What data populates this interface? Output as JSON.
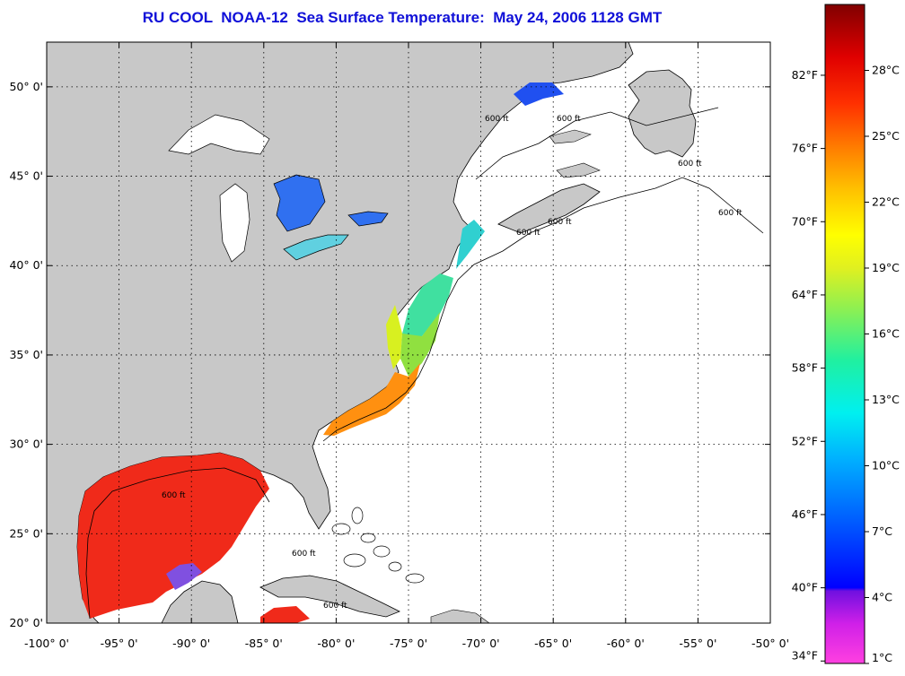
{
  "title": "RU COOL  NOAA-12  Sea Surface Temperature:  May 24, 2006 1128 GMT",
  "map": {
    "lon_range": [
      -100,
      -50
    ],
    "lat_range": [
      20,
      52.5
    ],
    "lon_ticks": [
      "-100° 0'",
      "-95° 0'",
      "-90° 0'",
      "-85° 0'",
      "-80° 0'",
      "-75° 0'",
      "-70° 0'",
      "-65° 0'",
      "-60° 0'",
      "-55° 0'",
      "-50° 0'"
    ],
    "lat_ticks": [
      "20° 0'",
      "25° 0'",
      "30° 0'",
      "35° 0'",
      "40° 0'",
      "45° 0'",
      "50° 0'"
    ],
    "isobath_label": "600 ft",
    "colors": {
      "land": "#c8c8c8",
      "ocean": "#ffffff",
      "grid": "#000000"
    }
  },
  "colorbar": {
    "min_c": 1,
    "max_c": 31,
    "celsius_labels": [
      "1°C",
      "4°C",
      "7°C",
      "10°C",
      "13°C",
      "16°C",
      "19°C",
      "22°C",
      "25°C",
      "28°C"
    ],
    "fahrenheit_labels": [
      "34°F",
      "40°F",
      "46°F",
      "52°F",
      "58°F",
      "64°F",
      "70°F",
      "76°F",
      "82°F"
    ],
    "fahrenheit_values": [
      34,
      40,
      46,
      52,
      58,
      64,
      70,
      76,
      82
    ]
  }
}
